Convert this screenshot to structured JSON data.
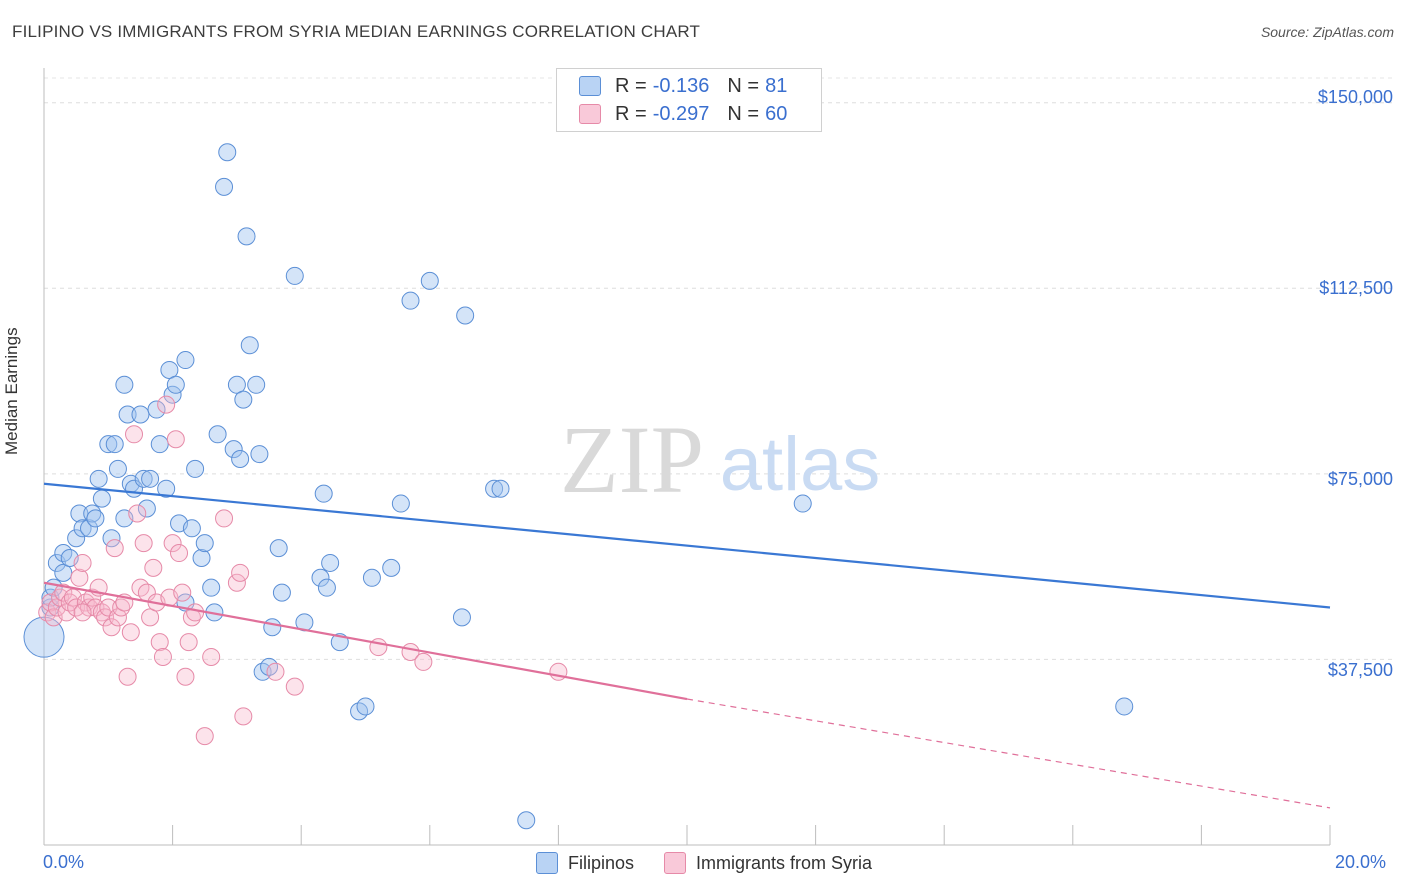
{
  "title": "FILIPINO VS IMMIGRANTS FROM SYRIA MEDIAN EARNINGS CORRELATION CHART",
  "source": "Source: ZipAtlas.com",
  "watermark": {
    "zip": "ZIP",
    "atlas": "atlas"
  },
  "legend": {
    "r_label": "R =",
    "n_label": "N =",
    "series": [
      {
        "name": "Filipinos",
        "r": "-0.136",
        "n": "81",
        "fill": "#a9c8f0",
        "stroke": "#5b8fd6"
      },
      {
        "name": "Immigrants from Syria",
        "r": "-0.297",
        "n": "60",
        "fill": "#f7bdd0",
        "stroke": "#e68aa8"
      }
    ]
  },
  "chart_data": {
    "type": "scatter",
    "title": "FILIPINO VS IMMIGRANTS FROM SYRIA MEDIAN EARNINGS CORRELATION CHART",
    "xlabel": "",
    "ylabel": "Median Earnings",
    "xlim": [
      0,
      20
    ],
    "ylim": [
      0,
      155000
    ],
    "x_tick_labels": [
      "0.0%",
      "20.0%"
    ],
    "y_ticks": [
      37500,
      75000,
      112500,
      150000
    ],
    "y_tick_labels": [
      "$37,500",
      "$75,000",
      "$112,500",
      "$150,000"
    ],
    "grid": true,
    "series": [
      {
        "name": "Filipinos",
        "color": "#3a78d4",
        "trend": {
          "x": [
            0,
            20
          ],
          "y": [
            73000,
            48000
          ]
        },
        "points": [
          [
            0.0,
            42000
          ],
          [
            0.1,
            48000
          ],
          [
            0.1,
            50000
          ],
          [
            0.15,
            52000
          ],
          [
            0.2,
            57000
          ],
          [
            0.3,
            59000
          ],
          [
            0.3,
            55000
          ],
          [
            0.4,
            58000
          ],
          [
            0.5,
            62000
          ],
          [
            0.55,
            67000
          ],
          [
            0.6,
            64000
          ],
          [
            0.7,
            64000
          ],
          [
            0.75,
            67000
          ],
          [
            0.8,
            66000
          ],
          [
            0.85,
            74000
          ],
          [
            0.9,
            70000
          ],
          [
            1.0,
            81000
          ],
          [
            1.05,
            62000
          ],
          [
            1.1,
            81000
          ],
          [
            1.15,
            76000
          ],
          [
            1.25,
            66000
          ],
          [
            1.25,
            93000
          ],
          [
            1.3,
            87000
          ],
          [
            1.35,
            73000
          ],
          [
            1.4,
            72000
          ],
          [
            1.5,
            87000
          ],
          [
            1.55,
            74000
          ],
          [
            1.6,
            68000
          ],
          [
            1.65,
            74000
          ],
          [
            1.75,
            88000
          ],
          [
            1.8,
            81000
          ],
          [
            1.9,
            72000
          ],
          [
            1.95,
            96000
          ],
          [
            2.0,
            91000
          ],
          [
            2.05,
            93000
          ],
          [
            2.1,
            65000
          ],
          [
            2.2,
            49000
          ],
          [
            2.2,
            98000
          ],
          [
            2.3,
            64000
          ],
          [
            2.35,
            76000
          ],
          [
            2.45,
            58000
          ],
          [
            2.5,
            61000
          ],
          [
            2.6,
            52000
          ],
          [
            2.65,
            47000
          ],
          [
            2.7,
            83000
          ],
          [
            2.8,
            133000
          ],
          [
            2.85,
            140000
          ],
          [
            2.95,
            80000
          ],
          [
            3.0,
            93000
          ],
          [
            3.05,
            78000
          ],
          [
            3.1,
            90000
          ],
          [
            3.15,
            123000
          ],
          [
            3.2,
            101000
          ],
          [
            3.3,
            93000
          ],
          [
            3.35,
            79000
          ],
          [
            3.4,
            35000
          ],
          [
            3.5,
            36000
          ],
          [
            3.55,
            44000
          ],
          [
            3.65,
            60000
          ],
          [
            3.7,
            51000
          ],
          [
            3.9,
            115000
          ],
          [
            4.05,
            45000
          ],
          [
            4.3,
            54000
          ],
          [
            4.35,
            71000
          ],
          [
            4.4,
            52000
          ],
          [
            4.45,
            57000
          ],
          [
            4.6,
            41000
          ],
          [
            4.9,
            27000
          ],
          [
            5.0,
            28000
          ],
          [
            5.1,
            54000
          ],
          [
            5.4,
            56000
          ],
          [
            5.55,
            69000
          ],
          [
            5.7,
            110000
          ],
          [
            6.0,
            114000
          ],
          [
            6.5,
            46000
          ],
          [
            6.55,
            107000
          ],
          [
            7.0,
            72000
          ],
          [
            7.1,
            72000
          ],
          [
            7.5,
            5000
          ],
          [
            11.8,
            69000
          ],
          [
            16.8,
            28000
          ]
        ]
      },
      {
        "name": "Immigrants from Syria",
        "color": "#e0709a",
        "trend": {
          "x": [
            0,
            10
          ],
          "y": [
            53000,
            29500
          ]
        },
        "trend_dashed": {
          "x": [
            10,
            20
          ],
          "y": [
            29500,
            7500
          ]
        },
        "points": [
          [
            0.05,
            47000
          ],
          [
            0.1,
            49000
          ],
          [
            0.15,
            46000
          ],
          [
            0.2,
            48000
          ],
          [
            0.25,
            50000
          ],
          [
            0.3,
            51000
          ],
          [
            0.35,
            47000
          ],
          [
            0.4,
            49000
          ],
          [
            0.45,
            50000
          ],
          [
            0.5,
            48000
          ],
          [
            0.55,
            54000
          ],
          [
            0.6,
            57000
          ],
          [
            0.65,
            49000
          ],
          [
            0.7,
            48000
          ],
          [
            0.75,
            50000
          ],
          [
            0.8,
            48000
          ],
          [
            0.85,
            52000
          ],
          [
            0.9,
            47000
          ],
          [
            0.95,
            46000
          ],
          [
            1.0,
            48000
          ],
          [
            1.05,
            44000
          ],
          [
            1.1,
            60000
          ],
          [
            1.15,
            46000
          ],
          [
            1.2,
            48000
          ],
          [
            1.25,
            49000
          ],
          [
            1.3,
            34000
          ],
          [
            1.35,
            43000
          ],
          [
            1.4,
            83000
          ],
          [
            1.45,
            67000
          ],
          [
            1.5,
            52000
          ],
          [
            1.55,
            61000
          ],
          [
            1.6,
            51000
          ],
          [
            1.65,
            46000
          ],
          [
            1.7,
            56000
          ],
          [
            1.75,
            49000
          ],
          [
            1.8,
            41000
          ],
          [
            1.85,
            38000
          ],
          [
            1.9,
            89000
          ],
          [
            1.95,
            50000
          ],
          [
            2.0,
            61000
          ],
          [
            2.05,
            82000
          ],
          [
            2.1,
            59000
          ],
          [
            2.15,
            51000
          ],
          [
            2.2,
            34000
          ],
          [
            2.25,
            41000
          ],
          [
            2.3,
            46000
          ],
          [
            2.35,
            47000
          ],
          [
            2.5,
            22000
          ],
          [
            2.6,
            38000
          ],
          [
            2.8,
            66000
          ],
          [
            3.0,
            53000
          ],
          [
            3.05,
            55000
          ],
          [
            3.1,
            26000
          ],
          [
            3.6,
            35000
          ],
          [
            3.9,
            32000
          ],
          [
            5.2,
            40000
          ],
          [
            5.7,
            39000
          ],
          [
            5.9,
            37000
          ],
          [
            8.0,
            35000
          ],
          [
            0.6,
            47000
          ]
        ]
      }
    ]
  }
}
